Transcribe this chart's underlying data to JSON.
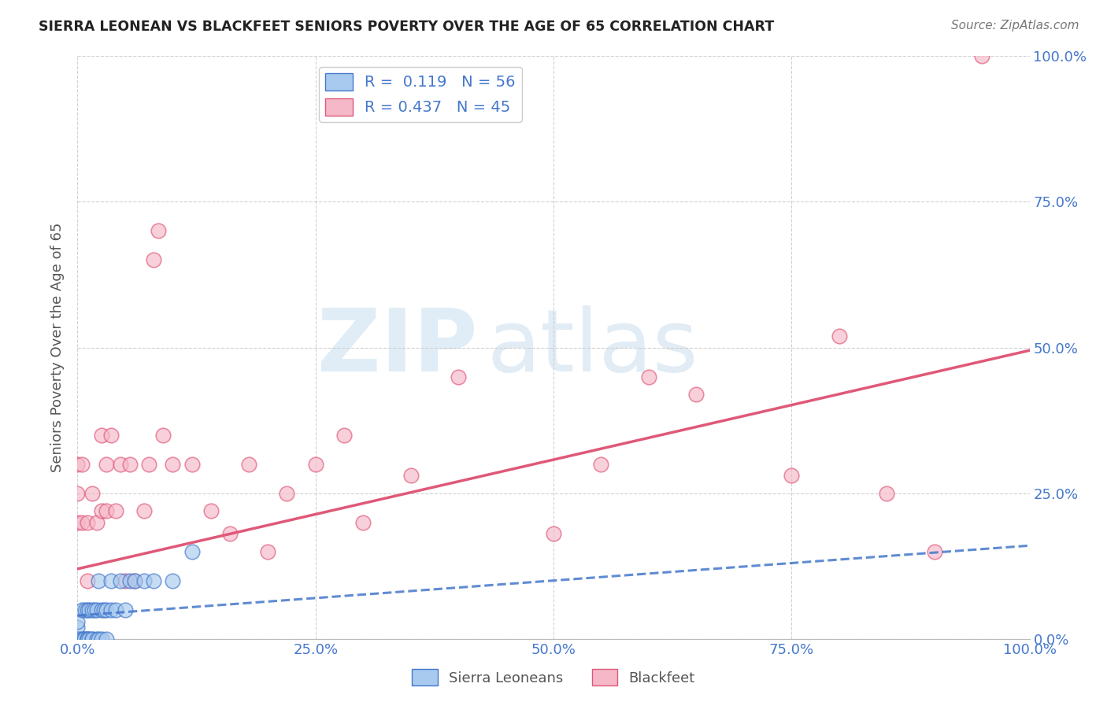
{
  "title": "SIERRA LEONEAN VS BLACKFEET SENIORS POVERTY OVER THE AGE OF 65 CORRELATION CHART",
  "source": "Source: ZipAtlas.com",
  "ylabel": "Seniors Poverty Over the Age of 65",
  "xlim": [
    0.0,
    1.0
  ],
  "ylim": [
    0.0,
    1.0
  ],
  "xticks": [
    0.0,
    0.25,
    0.5,
    0.75,
    1.0
  ],
  "yticks": [
    0.0,
    0.25,
    0.5,
    0.75,
    1.0
  ],
  "xtick_labels": [
    "0.0%",
    "25.0%",
    "50.0%",
    "75.0%",
    "100.0%"
  ],
  "ytick_labels": [
    "0.0%",
    "25.0%",
    "50.0%",
    "75.0%",
    "100.0%"
  ],
  "sierra_R": "0.119",
  "sierra_N": "56",
  "blackfeet_R": "0.437",
  "blackfeet_N": "45",
  "sierra_color": "#A8CAEE",
  "blackfeet_color": "#F5B8C8",
  "sierra_line_color": "#4477CC",
  "blackfeet_line_color": "#E05878",
  "watermark_zip": "ZIP",
  "watermark_atlas": "atlas",
  "background_color": "#ffffff",
  "grid_color": "#cccccc",
  "tick_color": "#4477CC",
  "sierra_x": [
    0.0,
    0.0,
    0.0,
    0.0,
    0.0,
    0.0,
    0.0,
    0.0,
    0.0,
    0.0,
    0.0,
    0.0,
    0.0,
    0.0,
    0.0,
    0.0,
    0.0,
    0.0,
    0.0,
    0.0,
    0.005,
    0.005,
    0.005,
    0.007,
    0.007,
    0.008,
    0.01,
    0.01,
    0.01,
    0.01,
    0.012,
    0.012,
    0.015,
    0.015,
    0.015,
    0.018,
    0.02,
    0.02,
    0.022,
    0.022,
    0.025,
    0.025,
    0.028,
    0.03,
    0.03,
    0.035,
    0.035,
    0.04,
    0.045,
    0.05,
    0.055,
    0.06,
    0.07,
    0.08,
    0.1,
    0.12
  ],
  "sierra_y": [
    0.0,
    0.0,
    0.0,
    0.0,
    0.0,
    0.0,
    0.0,
    0.0,
    0.0,
    0.0,
    0.0,
    0.0,
    0.0,
    0.0,
    0.0,
    0.0,
    0.0,
    0.0,
    0.02,
    0.03,
    0.0,
    0.0,
    0.05,
    0.0,
    0.0,
    0.05,
    0.0,
    0.0,
    0.0,
    0.05,
    0.0,
    0.05,
    0.0,
    0.0,
    0.05,
    0.05,
    0.0,
    0.05,
    0.0,
    0.1,
    0.0,
    0.05,
    0.05,
    0.0,
    0.05,
    0.05,
    0.1,
    0.05,
    0.1,
    0.05,
    0.1,
    0.1,
    0.1,
    0.1,
    0.1,
    0.15
  ],
  "blackfeet_x": [
    0.0,
    0.0,
    0.0,
    0.005,
    0.005,
    0.01,
    0.01,
    0.015,
    0.02,
    0.025,
    0.025,
    0.03,
    0.03,
    0.035,
    0.04,
    0.045,
    0.05,
    0.055,
    0.06,
    0.07,
    0.075,
    0.08,
    0.085,
    0.09,
    0.1,
    0.12,
    0.14,
    0.16,
    0.18,
    0.2,
    0.22,
    0.25,
    0.28,
    0.3,
    0.35,
    0.4,
    0.5,
    0.55,
    0.6,
    0.65,
    0.75,
    0.8,
    0.85,
    0.9,
    0.95
  ],
  "blackfeet_y": [
    0.2,
    0.25,
    0.3,
    0.2,
    0.3,
    0.1,
    0.2,
    0.25,
    0.2,
    0.22,
    0.35,
    0.22,
    0.3,
    0.35,
    0.22,
    0.3,
    0.1,
    0.3,
    0.1,
    0.22,
    0.3,
    0.65,
    0.7,
    0.35,
    0.3,
    0.3,
    0.22,
    0.18,
    0.3,
    0.15,
    0.25,
    0.3,
    0.35,
    0.2,
    0.28,
    0.45,
    0.18,
    0.3,
    0.45,
    0.42,
    0.28,
    0.52,
    0.25,
    0.15,
    1.0
  ],
  "sierra_line_x": [
    0.0,
    0.25
  ],
  "sierra_line_y": [
    0.04,
    0.07
  ],
  "blackfeet_line_x": [
    0.0,
    1.0
  ],
  "blackfeet_line_y": [
    0.12,
    0.495
  ]
}
